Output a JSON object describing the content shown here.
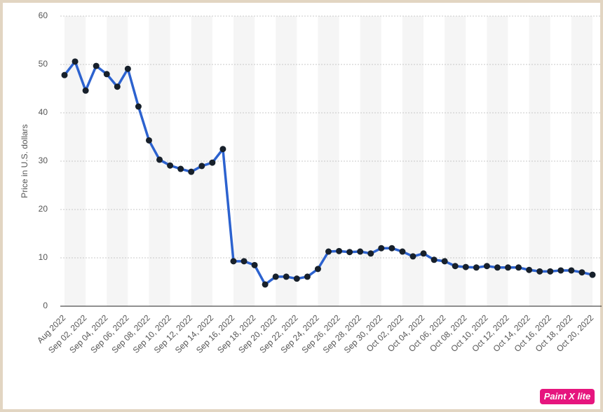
{
  "chart_data": {
    "type": "line",
    "y_label": "Price in U.S. dollars",
    "categories": [
      "Aug 2022",
      null,
      "Sep 02, 2022",
      null,
      "Sep 04, 2022",
      null,
      "Sep 06, 2022",
      null,
      "Sep 08, 2022",
      null,
      "Sep 10, 2022",
      null,
      "Sep 12, 2022",
      null,
      "Sep 14, 2022",
      null,
      "Sep 16, 2022",
      null,
      "Sep 18, 2022",
      null,
      "Sep 20, 2022",
      null,
      "Sep 22, 2022",
      null,
      "Sep 24, 2022",
      null,
      "Sep 26, 2022",
      null,
      "Sep 28, 2022",
      null,
      "Sep 30, 2022",
      null,
      "Oct 02, 2022",
      null,
      "Oct 04, 2022",
      null,
      "Oct 06, 2022",
      null,
      "Oct 08, 2022",
      null,
      "Oct 10, 2022",
      null,
      "Oct 12, 2022",
      null,
      "Oct 14, 2022",
      null,
      "Oct 16, 2022",
      null,
      "Oct 18, 2022",
      null,
      "Oct 20, 2022"
    ],
    "values": [
      47.8,
      50.6,
      44.6,
      49.7,
      48.0,
      45.4,
      49.1,
      41.3,
      34.3,
      30.3,
      29.1,
      28.4,
      27.8,
      29.0,
      29.7,
      32.5,
      9.3,
      9.3,
      8.5,
      4.5,
      6.1,
      6.1,
      5.7,
      6.1,
      7.7,
      11.3,
      11.4,
      11.2,
      11.3,
      10.9,
      12.0,
      12.0,
      11.3,
      10.3,
      10.9,
      9.6,
      9.3,
      8.3,
      8.1,
      8.0,
      8.3,
      8.0,
      8.0,
      8.0,
      7.5,
      7.2,
      7.2,
      7.4,
      7.4,
      7.0,
      6.5
    ],
    "color": "#2c62cf",
    "marker_color": "#17202b",
    "ylim": [
      0,
      60
    ],
    "yticks": [
      0,
      10,
      20,
      30,
      40,
      50,
      60
    ],
    "grid": true
  },
  "watermark": "Paint X lite"
}
